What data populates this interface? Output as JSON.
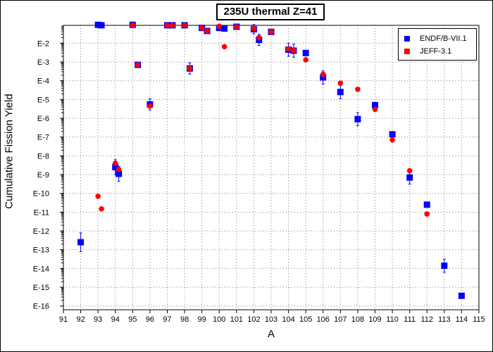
{
  "chart_data": {
    "type": "scatter",
    "title": "235U thermal Z=41",
    "xlabel": "A",
    "ylabel": "Cumulative Fission Yield",
    "xlim": [
      91,
      115
    ],
    "ylim_log10": [
      -16.2,
      -1.05
    ],
    "log_y": true,
    "grid": true,
    "legend_position": "top-right",
    "x_ticks": [
      91,
      92,
      93,
      94,
      95,
      96,
      97,
      98,
      99,
      100,
      101,
      102,
      103,
      104,
      105,
      106,
      107,
      108,
      109,
      110,
      111,
      112,
      113,
      114,
      115
    ],
    "y_tick_labels": [
      "E-2",
      "E-3",
      "E-4",
      "E-5",
      "E-6",
      "E-7",
      "E-8",
      "E-9",
      "E-10",
      "E-11",
      "E-12",
      "E-13",
      "E-14",
      "E-15",
      "E-16"
    ],
    "series": [
      {
        "name": "ENDF/B-VII.1",
        "color": "#0000ff",
        "marker": "square",
        "points": [
          {
            "x": 92,
            "y": 2.5e-13,
            "err": 0.5
          },
          {
            "x": 93,
            "y": 0.095,
            "err": 0
          },
          {
            "x": 93.2,
            "y": 0.09,
            "err": 0
          },
          {
            "x": 94,
            "y": 2.5e-09,
            "err": 0.4
          },
          {
            "x": 94.2,
            "y": 1.1e-09,
            "err": 0.4
          },
          {
            "x": 95,
            "y": 0.095,
            "err": 0
          },
          {
            "x": 95.3,
            "y": 0.0007,
            "err": 0
          },
          {
            "x": 96,
            "y": 5.5e-06,
            "err": 0.3
          },
          {
            "x": 97,
            "y": 0.09,
            "err": 0
          },
          {
            "x": 97.3,
            "y": 0.09,
            "err": 0
          },
          {
            "x": 98,
            "y": 0.09,
            "err": 0
          },
          {
            "x": 98.3,
            "y": 0.00045,
            "err": 0.3
          },
          {
            "x": 99,
            "y": 0.065,
            "err": 0
          },
          {
            "x": 99.3,
            "y": 0.045,
            "err": 0
          },
          {
            "x": 100,
            "y": 0.065,
            "err": 0
          },
          {
            "x": 100.3,
            "y": 0.06,
            "err": 0
          },
          {
            "x": 101,
            "y": 0.075,
            "err": 0
          },
          {
            "x": 102,
            "y": 0.055,
            "err": 0.25
          },
          {
            "x": 102.3,
            "y": 0.015,
            "err": 0.3
          },
          {
            "x": 103,
            "y": 0.04,
            "err": 0
          },
          {
            "x": 104,
            "y": 0.0045,
            "err": 0.35
          },
          {
            "x": 104.3,
            "y": 0.004,
            "err": 0.35
          },
          {
            "x": 105,
            "y": 0.003,
            "err": 0
          },
          {
            "x": 106,
            "y": 0.00015,
            "err": 0.35
          },
          {
            "x": 107,
            "y": 2.5e-05,
            "err": 0.35
          },
          {
            "x": 108,
            "y": 9e-07,
            "err": 0.35
          },
          {
            "x": 109,
            "y": 5e-06,
            "err": 0
          },
          {
            "x": 110,
            "y": 1.4e-07,
            "err": 0
          },
          {
            "x": 111,
            "y": 7e-10,
            "err": 0.35
          },
          {
            "x": 112,
            "y": 2.5e-11,
            "err": 0
          },
          {
            "x": 113,
            "y": 1.4e-14,
            "err": 0.35
          },
          {
            "x": 114,
            "y": 3.5e-16,
            "err": 0
          }
        ]
      },
      {
        "name": "JEFF-3.1",
        "color": "#ff0000",
        "marker": "circle",
        "points": [
          {
            "x": 93,
            "y": 7e-11
          },
          {
            "x": 93.2,
            "y": 1.5e-11
          },
          {
            "x": 94,
            "y": 4e-09
          },
          {
            "x": 94.2,
            "y": 1.9e-09
          },
          {
            "x": 95,
            "y": 0.09
          },
          {
            "x": 95.3,
            "y": 0.0007
          },
          {
            "x": 96,
            "y": 4.5e-06
          },
          {
            "x": 97,
            "y": 0.09
          },
          {
            "x": 97.3,
            "y": 0.09
          },
          {
            "x": 98,
            "y": 0.09
          },
          {
            "x": 98.3,
            "y": 0.00045
          },
          {
            "x": 99,
            "y": 0.065
          },
          {
            "x": 99.3,
            "y": 0.045
          },
          {
            "x": 100,
            "y": 0.08
          },
          {
            "x": 100.3,
            "y": 0.0065
          },
          {
            "x": 101,
            "y": 0.075
          },
          {
            "x": 102,
            "y": 0.06
          },
          {
            "x": 102.3,
            "y": 0.02
          },
          {
            "x": 103,
            "y": 0.04
          },
          {
            "x": 104,
            "y": 0.005
          },
          {
            "x": 104.3,
            "y": 0.004
          },
          {
            "x": 105,
            "y": 0.0013
          },
          {
            "x": 106,
            "y": 0.00022
          },
          {
            "x": 107,
            "y": 7.5e-05
          },
          {
            "x": 108,
            "y": 3.5e-05
          },
          {
            "x": 109,
            "y": 3e-06
          },
          {
            "x": 110,
            "y": 7e-08
          },
          {
            "x": 111,
            "y": 1.6e-09
          },
          {
            "x": 112,
            "y": 8e-12
          }
        ]
      }
    ]
  }
}
